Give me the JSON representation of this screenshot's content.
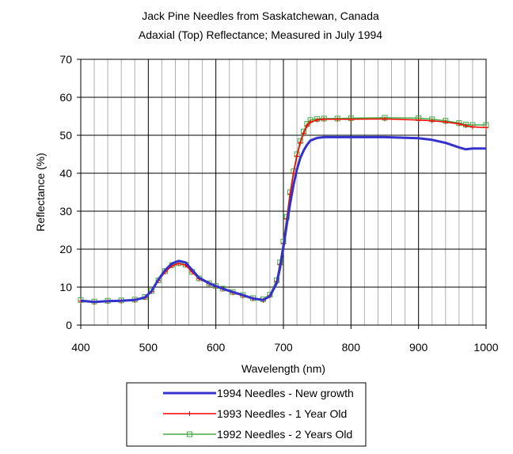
{
  "chart_data": {
    "type": "line",
    "title": "Jack Pine Needles from Saskatchewan, Canada",
    "subtitle": "Adaxial (Top) Reflectance; Measured in July 1994",
    "xlabel": "Wavelength (nm)",
    "ylabel": "Reflectance  (%)",
    "xlim": [
      400,
      1000
    ],
    "ylim": [
      0,
      70
    ],
    "x_ticks": [
      "400",
      "500",
      "600",
      "700",
      "800",
      "900",
      "1000"
    ],
    "y_ticks": [
      "0",
      "10",
      "20",
      "30",
      "40",
      "50",
      "60",
      "70"
    ],
    "grid": true,
    "legend_position": "bottom",
    "series": [
      {
        "name": "1994 Needles - New growth",
        "color": "#3333cc",
        "marker": "none",
        "x": [
          400,
          420,
          440,
          460,
          480,
          495,
          505,
          515,
          525,
          535,
          545,
          555,
          565,
          575,
          590,
          600,
          610,
          625,
          640,
          655,
          670,
          680,
          690,
          695,
          700,
          705,
          710,
          715,
          720,
          725,
          730,
          735,
          740,
          750,
          760,
          780,
          800,
          850,
          900,
          920,
          940,
          960,
          970,
          980,
          1000
        ],
        "values": [
          6.4,
          6.1,
          6.3,
          6.4,
          6.6,
          7.3,
          9.0,
          12.0,
          14.5,
          16.2,
          16.9,
          16.5,
          14.5,
          12.5,
          11.0,
          10.3,
          9.6,
          8.7,
          7.9,
          7.0,
          6.6,
          7.6,
          11.0,
          15.0,
          20.5,
          26.5,
          32.0,
          37.0,
          41.0,
          44.0,
          46.0,
          47.5,
          48.6,
          49.3,
          49.5,
          49.5,
          49.5,
          49.5,
          49.2,
          48.8,
          48.0,
          46.8,
          46.3,
          46.5,
          46.5
        ]
      },
      {
        "name": "1993 Needles - 1 Year Old",
        "color": "#ff0000",
        "marker": "plus",
        "x": [
          400,
          420,
          440,
          460,
          480,
          495,
          505,
          515,
          525,
          535,
          545,
          555,
          565,
          575,
          590,
          600,
          610,
          625,
          640,
          655,
          670,
          680,
          690,
          695,
          700,
          705,
          710,
          715,
          720,
          725,
          730,
          735,
          740,
          750,
          760,
          780,
          800,
          850,
          900,
          920,
          940,
          960,
          970,
          980,
          1000
        ],
        "values": [
          6.3,
          6.0,
          6.2,
          6.3,
          6.5,
          7.2,
          8.8,
          11.7,
          14.0,
          15.6,
          16.2,
          15.8,
          14.0,
          12.2,
          10.9,
          10.2,
          9.5,
          8.5,
          7.7,
          6.9,
          6.5,
          7.7,
          11.5,
          16.0,
          21.5,
          28.0,
          34.5,
          40.0,
          44.5,
          48.0,
          50.5,
          52.5,
          53.5,
          54.0,
          54.2,
          54.2,
          54.2,
          54.3,
          54.0,
          53.8,
          53.5,
          53.0,
          52.5,
          52.2,
          52.0
        ]
      },
      {
        "name": "1992 Needles - 2 Years Old",
        "color": "#44aa44",
        "marker": "square",
        "x": [
          400,
          420,
          440,
          460,
          480,
          495,
          505,
          515,
          525,
          535,
          545,
          555,
          565,
          575,
          590,
          600,
          610,
          625,
          640,
          655,
          670,
          680,
          690,
          695,
          700,
          705,
          710,
          715,
          720,
          725,
          730,
          735,
          740,
          750,
          760,
          780,
          800,
          850,
          900,
          920,
          940,
          960,
          970,
          980,
          1000
        ],
        "values": [
          6.6,
          6.2,
          6.4,
          6.5,
          6.7,
          7.4,
          9.0,
          11.8,
          14.2,
          15.8,
          16.3,
          15.9,
          14.0,
          12.3,
          11.0,
          10.3,
          9.6,
          8.7,
          7.9,
          7.1,
          6.8,
          8.0,
          11.8,
          16.5,
          22.0,
          28.5,
          35.0,
          40.5,
          45.0,
          48.5,
          51.0,
          53.0,
          54.0,
          54.3,
          54.4,
          54.4,
          54.5,
          54.6,
          54.5,
          54.2,
          53.8,
          53.2,
          52.8,
          52.7,
          52.7
        ]
      }
    ]
  }
}
